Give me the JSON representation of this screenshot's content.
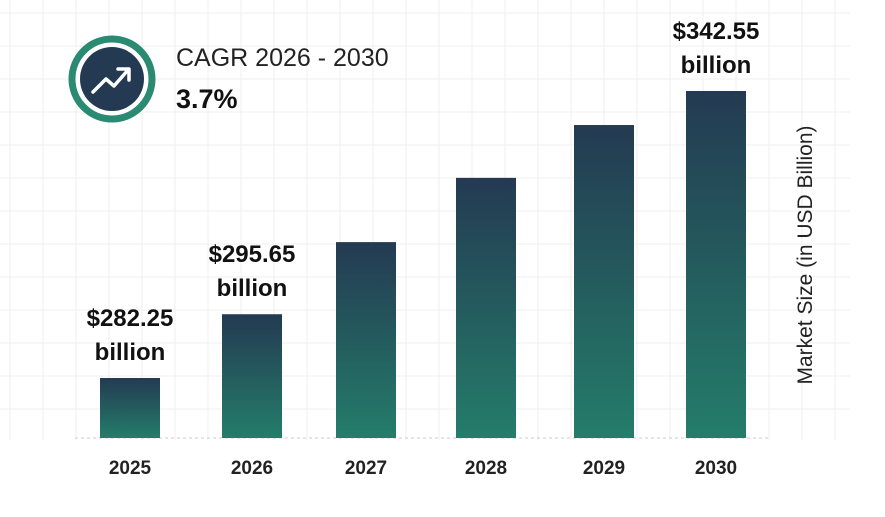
{
  "chart_data": {
    "type": "bar",
    "categories": [
      "2025",
      "2026",
      "2027",
      "2028",
      "2029",
      "2030"
    ],
    "values": [
      282.25,
      295.65,
      310.8,
      324.3,
      335.4,
      342.55
    ],
    "data_labels": [
      {
        "index": 0,
        "line1": "$282.25",
        "line2": "billion"
      },
      {
        "index": 1,
        "line1": "$295.65",
        "line2": "billion"
      },
      {
        "index": 5,
        "line1": "$342.55",
        "line2": "billion"
      }
    ],
    "title": "",
    "xlabel": "",
    "ylabel": "Market Size (in USD Billion)",
    "grid": true,
    "colors": {
      "bar_top": "#243a52",
      "bar_bottom": "#247d6a",
      "ring": "#2a8a72",
      "icon_fill": "#243a52"
    }
  },
  "cagr": {
    "title": "CAGR 2026 - 2030",
    "value": "3.7%",
    "icon": "trend-up-arrow-icon"
  }
}
